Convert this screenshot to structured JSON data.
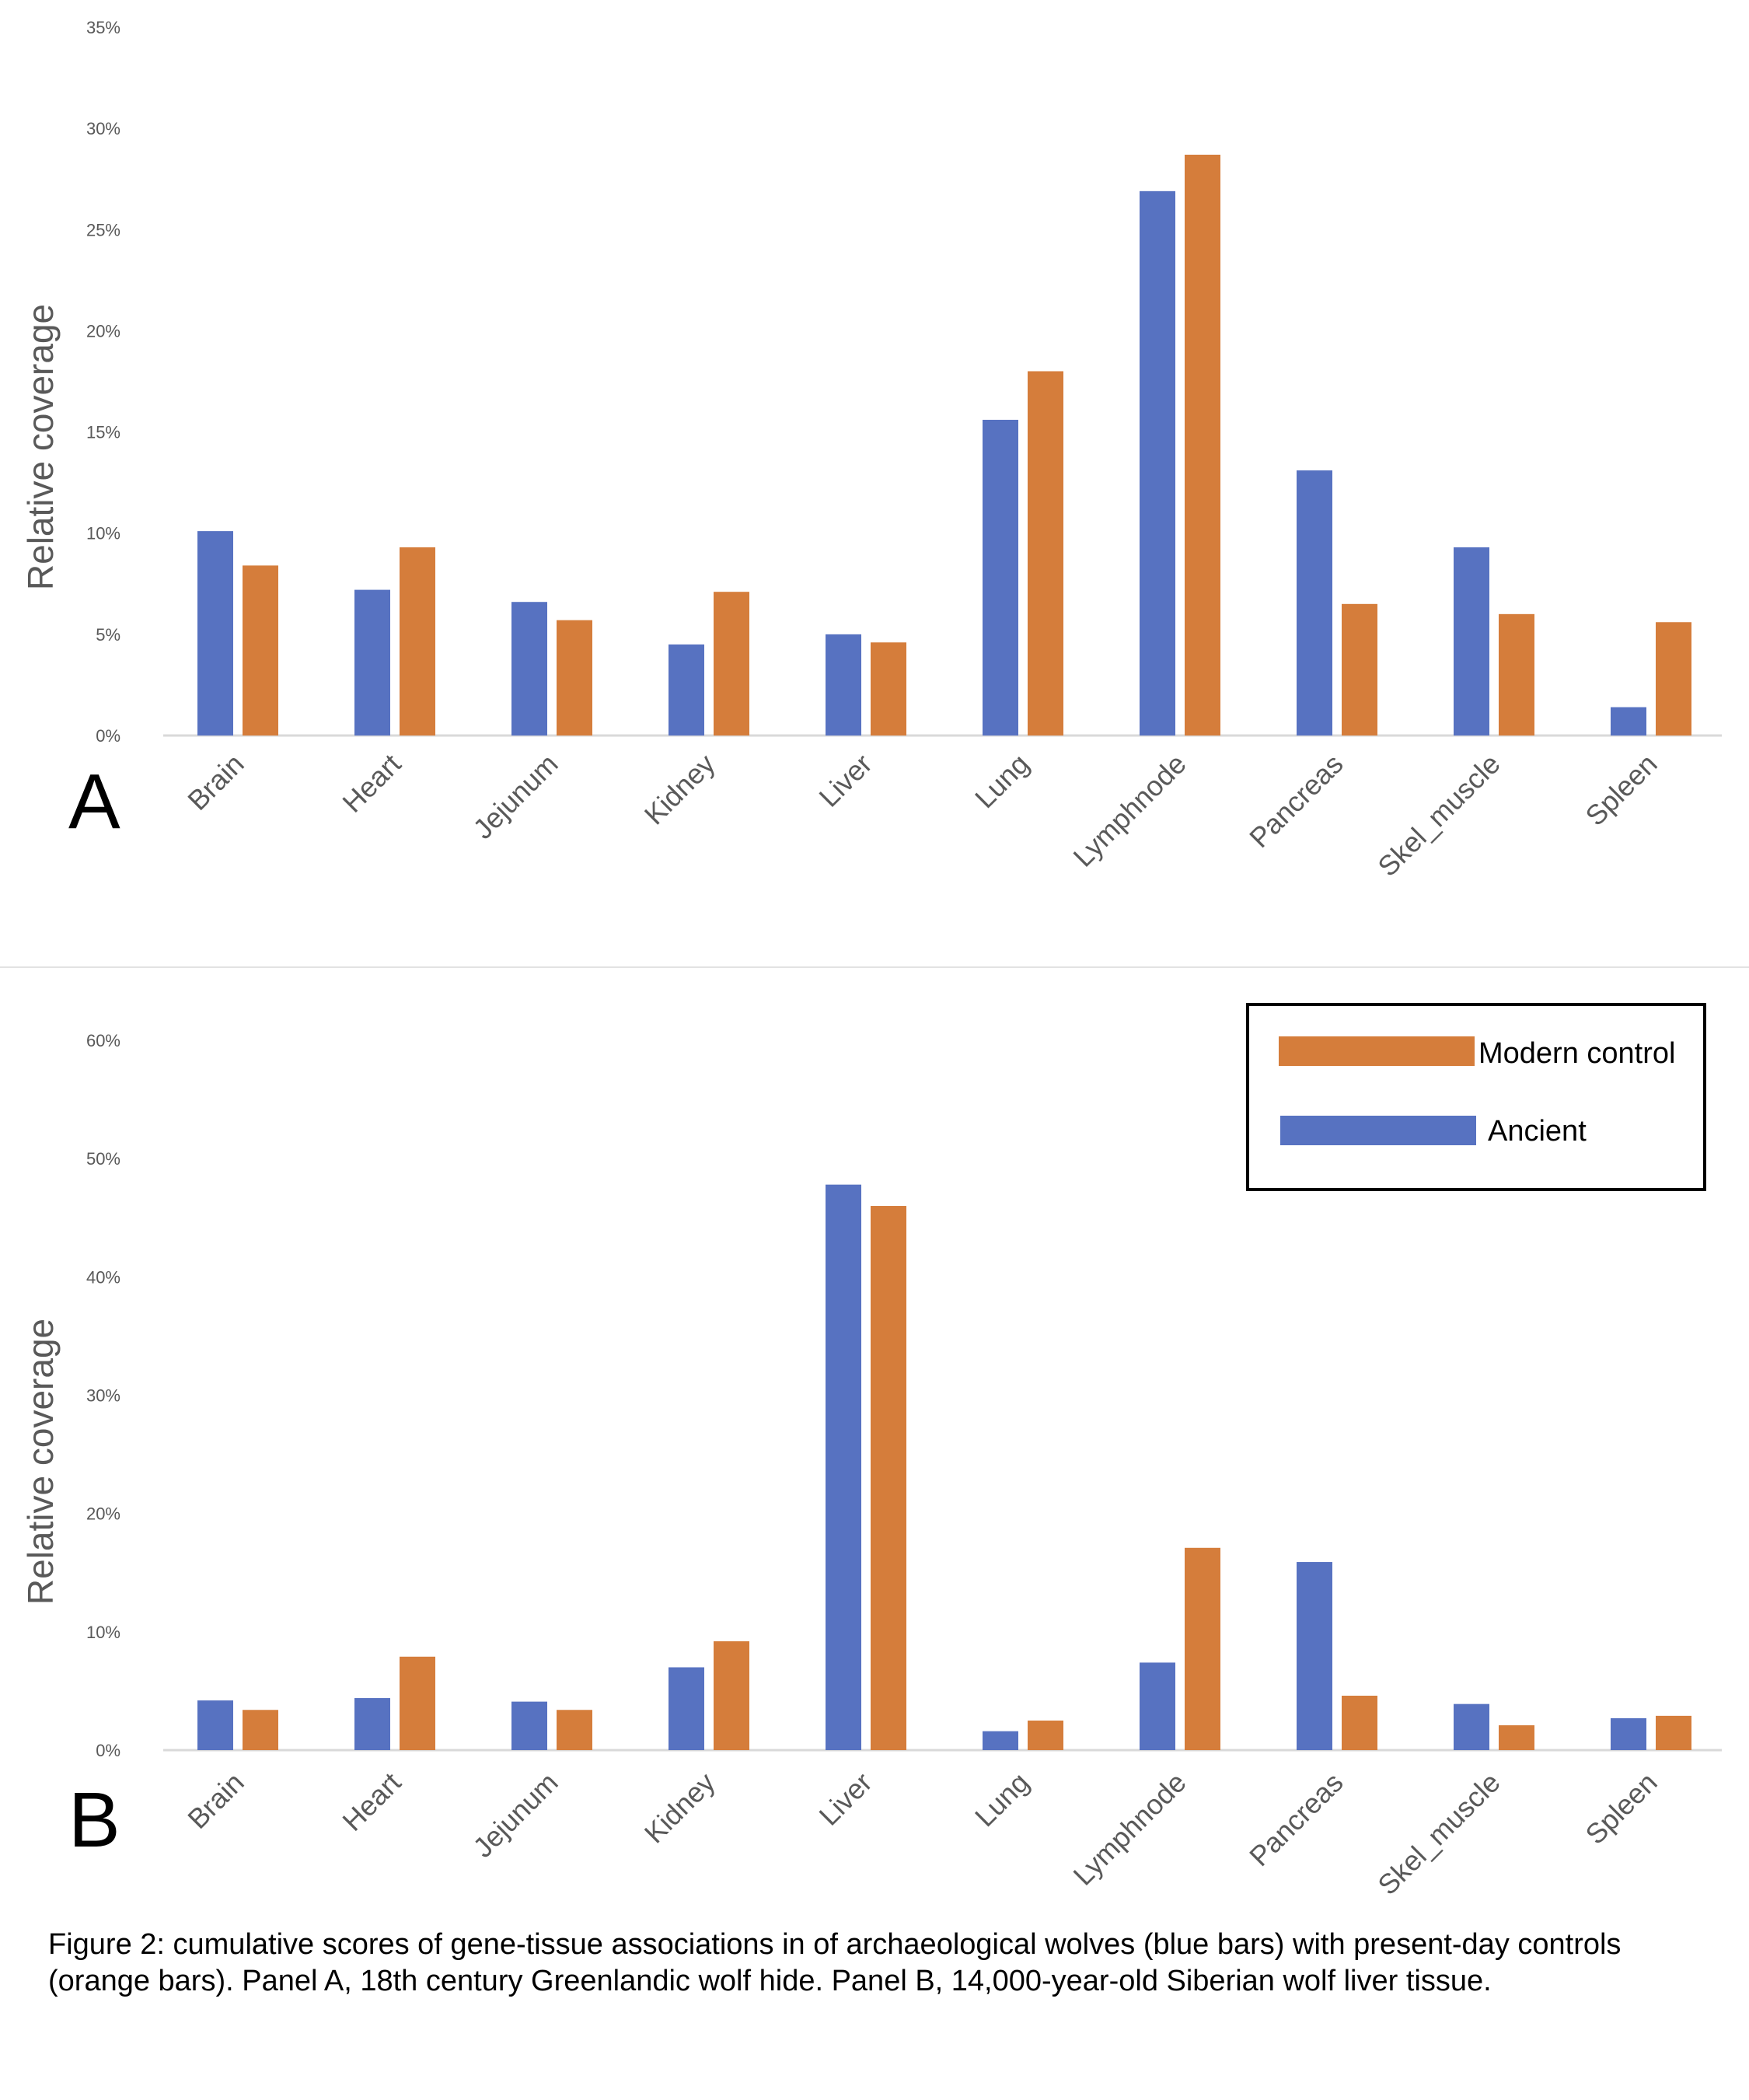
{
  "colors": {
    "ancient": "#5772C1",
    "modern": "#D57D3B",
    "axis": "#d9d9d9",
    "text": "#595959"
  },
  "legend": {
    "modern_label": "Modern control",
    "ancient_label": "Ancient"
  },
  "caption": "Figure 2: cumulative scores of gene-tissue associations in of archaeological wolves (blue bars) with present-day controls (orange bars). Panel A, 18th century Greenlandic wolf hide. Panel B, 14,000-year-old Siberian wolf liver tissue.",
  "chart_data": [
    {
      "type": "bar",
      "panel": "A",
      "title": "",
      "xlabel": "",
      "ylabel": "Relative coverage",
      "ylim": [
        0,
        35
      ],
      "yticks": [
        "0%",
        "5%",
        "10%",
        "15%",
        "20%",
        "25%",
        "30%",
        "35%"
      ],
      "ytick_values": [
        0,
        5,
        10,
        15,
        20,
        25,
        30,
        35
      ],
      "grid": false,
      "legend": "none",
      "categories": [
        "Brain",
        "Heart",
        "Jejunum",
        "Kidney",
        "Liver",
        "Lung",
        "Lymphnode",
        "Pancreas",
        "Skel_muscle",
        "Spleen"
      ],
      "series": [
        {
          "name": "Ancient",
          "color": "#5772C1",
          "values": [
            10.1,
            7.2,
            6.6,
            4.5,
            5.0,
            15.6,
            26.9,
            13.1,
            9.3,
            1.4
          ]
        },
        {
          "name": "Modern control",
          "color": "#D57D3B",
          "values": [
            8.4,
            9.3,
            5.7,
            7.1,
            4.6,
            18.0,
            28.7,
            6.5,
            6.0,
            5.6
          ]
        }
      ]
    },
    {
      "type": "bar",
      "panel": "B",
      "title": "",
      "xlabel": "",
      "ylabel": "Relative coverage",
      "ylim": [
        0,
        60
      ],
      "yticks": [
        "0%",
        "10%",
        "20%",
        "30%",
        "40%",
        "50%",
        "60%"
      ],
      "ytick_values": [
        0,
        10,
        20,
        30,
        40,
        50,
        60
      ],
      "grid": false,
      "legend": "top-right",
      "categories": [
        "Brain",
        "Heart",
        "Jejunum",
        "Kidney",
        "Liver",
        "Lung",
        "Lymphnode",
        "Pancreas",
        "Skel_muscle",
        "Spleen"
      ],
      "series": [
        {
          "name": "Ancient",
          "color": "#5772C1",
          "values": [
            4.2,
            4.4,
            4.1,
            7.0,
            47.8,
            1.6,
            7.4,
            15.9,
            3.9,
            2.7
          ]
        },
        {
          "name": "Modern control",
          "color": "#D57D3B",
          "values": [
            3.4,
            7.9,
            3.4,
            9.2,
            46.0,
            2.5,
            17.1,
            4.6,
            2.1,
            2.9
          ]
        }
      ]
    }
  ]
}
